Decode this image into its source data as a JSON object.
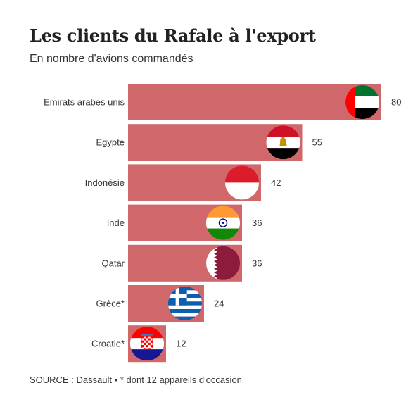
{
  "title": "Les clients du Rafale à l'export",
  "subtitle": "En nombre d'avions commandés",
  "footer": {
    "source": "SOURCE : Dassault",
    "separator": "•",
    "note": "* dont 12 appareils d'occasion"
  },
  "colors": {
    "bar": "#d0676a",
    "text": "#333333"
  },
  "chart_data": {
    "type": "bar",
    "orientation": "horizontal",
    "categories": [
      "Emirats arabes unis",
      "Egypte",
      "Indonésie",
      "Inde",
      "Qatar",
      "Grèce*",
      "Croatie*"
    ],
    "values": [
      80,
      55,
      42,
      36,
      36,
      24,
      12
    ],
    "flags": [
      "uae-flag-icon",
      "egypt-flag-icon",
      "indonesia-flag-icon",
      "india-flag-icon",
      "qatar-flag-icon",
      "greece-flag-icon",
      "croatia-flag-icon"
    ],
    "xlim": [
      0,
      80
    ],
    "grid": false,
    "legend": "none"
  }
}
